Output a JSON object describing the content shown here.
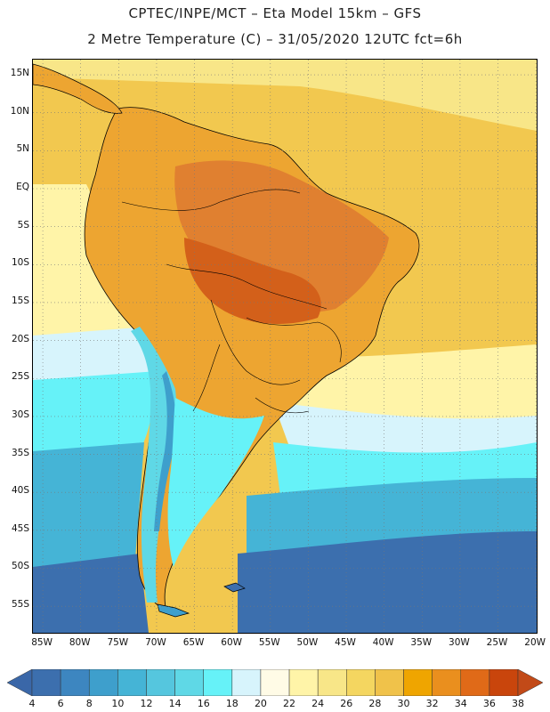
{
  "title": {
    "line1": "CPTEC/INPE/MCT –  Eta Model 15km – GFS",
    "line2": "2 Metre Temperature (C) – 31/05/2020 12UTC fct=6h"
  },
  "axes": {
    "lat_labels": [
      "15N",
      "10N",
      "5N",
      "EQ",
      "5S",
      "10S",
      "15S",
      "20S",
      "25S",
      "30S",
      "35S",
      "40S",
      "45S",
      "50S",
      "55S"
    ],
    "lon_labels": [
      "85W",
      "80W",
      "75W",
      "70W",
      "65W",
      "60W",
      "55W",
      "50W",
      "45W",
      "40W",
      "35W",
      "30W",
      "25W",
      "20W"
    ]
  },
  "colorbar": {
    "levels": [
      "4",
      "6",
      "8",
      "10",
      "12",
      "14",
      "16",
      "18",
      "20",
      "22",
      "24",
      "26",
      "28",
      "30",
      "32",
      "34",
      "36",
      "38"
    ],
    "colors": [
      "#3c6fae",
      "#3d86c0",
      "#3e9fcc",
      "#45b4d6",
      "#55c6de",
      "#5fd8e6",
      "#66f2f8",
      "#d7f4fc",
      "#fffbe6",
      "#fff4a8",
      "#f8e688",
      "#f4d660",
      "#f0c24a",
      "#efa500",
      "#ea8f1e",
      "#e06a18",
      "#c9450c"
    ],
    "low_arrow_color": "#3a67a8",
    "high_arrow_color": "#c24a18"
  },
  "map_colors": {
    "tropical_ocean": "#f2c84f",
    "warm_ocean": "#f8e688",
    "mild_ocean": "#fff4a8",
    "subtropical_ocean": "#d7f4fc",
    "cool_ocean": "#66f2f8",
    "cold_ocean": "#45b4d6",
    "polar_ocean": "#3c6fae",
    "hot_land": "#e08030",
    "very_hot_land": "#d3601a",
    "warm_land": "#eda531",
    "andes_cold": "#3e9fcc",
    "andes_mild": "#5fd8e6"
  }
}
